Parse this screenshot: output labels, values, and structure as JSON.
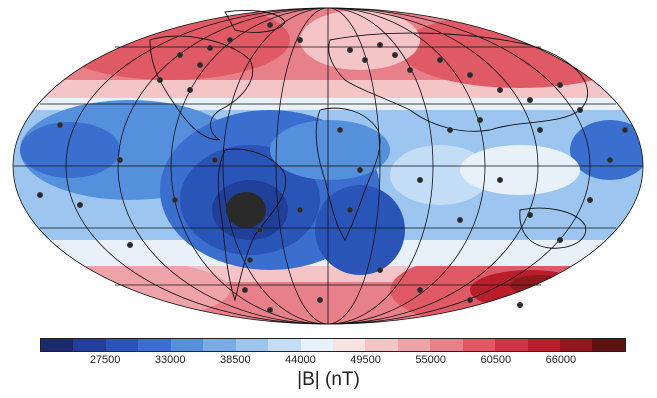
{
  "colorbar": {
    "label": "|B| (nT)",
    "ticks": [
      "27500",
      "33000",
      "38500",
      "44000",
      "49500",
      "55000",
      "60500",
      "66000"
    ],
    "colors": [
      "#1a2a6c",
      "#1f3f9a",
      "#2a55b8",
      "#3b6fcf",
      "#5590dd",
      "#78ace6",
      "#9cc6ef",
      "#c3ddf6",
      "#e8f0fa",
      "#f8e3e3",
      "#f4c4c7",
      "#eea3a8",
      "#e8808a",
      "#e05a66",
      "#cf3643",
      "#b81f2a",
      "#8e1a1d",
      "#5e1212"
    ]
  },
  "map": {
    "projection": "mollweide",
    "field": "geomagnetic field intensity",
    "features": [
      "continent outlines",
      "observatory stations",
      "graticule"
    ]
  }
}
